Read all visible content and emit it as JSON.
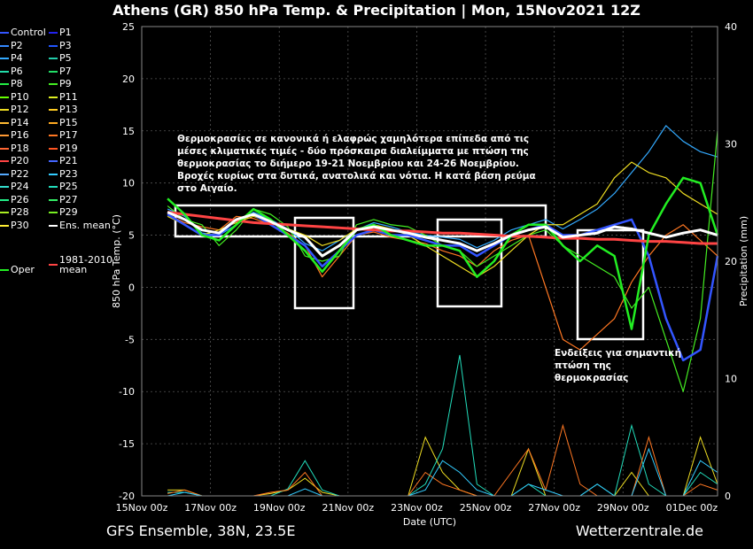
{
  "title": "Athens  (GR)  850 hPa Temp. & Precipitation | Mon, 15Nov2021 12Z",
  "footer_left": "GFS Ensemble, 38N, 23.5E",
  "footer_right": "Wetterzentrale.de",
  "annotation_main": "Θερμοκρασίες σε κανονικά ή ελαφρώς χαμηλότερα επίπεδα από τις μέσες κλιματικές τιμές - δύο πρόσκαιρα διαλείμματα με πτώση της θερμοκρασίας το διήμερο 19-21 Νοεμβρίου και 24-26 Νοεμβρίου. Βροχές κυρίως στα δυτικά, ανατολικά και νότια. Η κατά βάση ρεύμα στο Αιγαίο.",
  "annotation_drop": "Ενδείξεις για σημαντική πτώση της θερμοκρασίας",
  "legend": [
    {
      "label": "Control",
      "color": "#3355ff"
    },
    {
      "label": "P1",
      "color": "#2222ee"
    },
    {
      "label": "P2",
      "color": "#3388ff"
    },
    {
      "label": "P3",
      "color": "#2255ff"
    },
    {
      "label": "P4",
      "color": "#33aaff"
    },
    {
      "label": "P5",
      "color": "#22ccaa"
    },
    {
      "label": "P6",
      "color": "#22ddaa"
    },
    {
      "label": "P7",
      "color": "#22dd66"
    },
    {
      "label": "P8",
      "color": "#22ee44"
    },
    {
      "label": "P9",
      "color": "#44ee22"
    },
    {
      "label": "P10",
      "color": "#66ff00"
    },
    {
      "label": "P11",
      "color": "#ddee22"
    },
    {
      "label": "P12",
      "color": "#eedd22"
    },
    {
      "label": "P13",
      "color": "#ffcc22"
    },
    {
      "label": "P14",
      "color": "#ffbb33"
    },
    {
      "label": "P15",
      "color": "#ffaa22"
    },
    {
      "label": "P16",
      "color": "#ff9933"
    },
    {
      "label": "P17",
      "color": "#ff7722"
    },
    {
      "label": "P18",
      "color": "#ff6633"
    },
    {
      "label": "P19",
      "color": "#ff5522"
    },
    {
      "label": "P20",
      "color": "#ff4444"
    },
    {
      "label": "P21",
      "color": "#4466ff"
    },
    {
      "label": "P22",
      "color": "#55aaff"
    },
    {
      "label": "P23",
      "color": "#33ccff"
    },
    {
      "label": "P24",
      "color": "#33ddcc"
    },
    {
      "label": "P25",
      "color": "#22ddbb"
    },
    {
      "label": "P26",
      "color": "#22ee88"
    },
    {
      "label": "P27",
      "color": "#33ee66"
    },
    {
      "label": "P28",
      "color": "#aaee22"
    },
    {
      "label": "P29",
      "color": "#77ee22"
    },
    {
      "label": "P30",
      "color": "#ffee33"
    },
    {
      "label": "Ens. mean",
      "color": "#ffffff"
    },
    {
      "label": "Oper",
      "color": "#22ee22"
    },
    {
      "label": "1981-2010 mean",
      "color": "#ff4444"
    }
  ],
  "chart_data": {
    "type": "line",
    "x_tick_labels": [
      "15Nov 00z",
      "17Nov 00z",
      "19Nov 00z",
      "21Nov 00z",
      "23Nov 00z",
      "25Nov 00z",
      "27Nov 00z",
      "29Nov 00z",
      "01Dec 00z"
    ],
    "x_range_days": [
      15,
      31.75
    ],
    "ylabel_left": "850 hPa Temp. (°C)",
    "ylabel_right": "Precipitation (mm)",
    "xlabel": "Date (UTC)",
    "ylim_left": [
      -20,
      25
    ],
    "ylim_right": [
      0,
      40
    ],
    "y_ticks_left": [
      25,
      20,
      15,
      10,
      5,
      0,
      -5,
      -10,
      -15,
      -20
    ],
    "y_ticks_right": [
      40,
      30,
      20,
      10,
      0
    ],
    "grid": true,
    "x": [
      15.75,
      16.25,
      16.75,
      17.25,
      17.75,
      18.25,
      18.75,
      19.25,
      19.75,
      20.25,
      20.75,
      21.25,
      21.75,
      22.25,
      22.75,
      23.25,
      23.75,
      24.25,
      24.75,
      25.25,
      25.75,
      26.25,
      26.75,
      27.25,
      27.75,
      28.25,
      28.75,
      29.25,
      29.75,
      30.25,
      30.75,
      31.25,
      31.75
    ],
    "series": [
      {
        "name": "Ens. mean",
        "values": [
          7.2,
          6.5,
          5.5,
          5.2,
          6.5,
          7.0,
          6.3,
          5.5,
          4.8,
          3.0,
          4.0,
          5.5,
          5.8,
          5.5,
          5.2,
          4.8,
          4.5,
          4.2,
          3.5,
          4.2,
          5.0,
          5.5,
          5.8,
          4.8,
          5.0,
          5.2,
          5.8,
          5.6,
          5.2,
          4.8,
          5.2,
          5.5,
          5.0
        ]
      },
      {
        "name": "1981-2010 mean",
        "values": [
          7.2,
          7.0,
          6.8,
          6.6,
          6.4,
          6.2,
          6.1,
          6.0,
          5.9,
          5.8,
          5.7,
          5.6,
          5.5,
          5.4,
          5.4,
          5.3,
          5.2,
          5.2,
          5.1,
          5.0,
          4.9,
          4.9,
          4.8,
          4.7,
          4.7,
          4.6,
          4.6,
          4.5,
          4.4,
          4.4,
          4.3,
          4.2,
          4.2
        ]
      },
      {
        "name": "Oper",
        "values": [
          8.5,
          7.0,
          5.0,
          4.5,
          6.0,
          7.5,
          6.5,
          5.0,
          3.5,
          1.5,
          3.5,
          5.5,
          6.0,
          5.0,
          4.5,
          4.0,
          4.0,
          3.5,
          1.0,
          2.5,
          5.0,
          6.0,
          6.0,
          4.0,
          2.5,
          4.0,
          3.0,
          -4.0,
          5.0,
          8.0,
          10.5,
          10.0,
          5.0
        ]
      },
      {
        "name": "Control",
        "values": [
          7.0,
          6.0,
          5.0,
          5.0,
          6.5,
          7.0,
          6.0,
          5.0,
          4.0,
          2.0,
          3.5,
          5.0,
          5.5,
          5.0,
          5.0,
          4.5,
          4.0,
          4.0,
          3.0,
          4.0,
          5.0,
          5.5,
          6.0,
          5.0,
          5.0,
          5.5,
          6.0,
          6.5,
          3.0,
          -3.0,
          -7.0,
          -6.0,
          3.0
        ]
      },
      {
        "name": "P4",
        "values": [
          7.5,
          6.8,
          5.2,
          5.0,
          6.0,
          7.2,
          6.5,
          5.6,
          4.2,
          3.5,
          4.5,
          5.5,
          6.2,
          5.8,
          5.3,
          5.0,
          4.8,
          4.6,
          3.8,
          4.5,
          5.5,
          6.0,
          6.5,
          5.6,
          6.5,
          7.5,
          9.0,
          11.0,
          13.0,
          15.5,
          14.0,
          13.0,
          12.5
        ]
      },
      {
        "name": "P17",
        "values": [
          7.0,
          6.2,
          5.8,
          5.5,
          6.8,
          6.6,
          6.0,
          5.2,
          4.0,
          1.0,
          3.0,
          5.0,
          5.3,
          4.8,
          4.5,
          4.2,
          3.5,
          3.0,
          2.0,
          3.5,
          4.5,
          5.0,
          0.0,
          -5.0,
          -6.0,
          -4.5,
          -3.0,
          0.5,
          3.0,
          5.0,
          6.0,
          4.5,
          3.0
        ]
      },
      {
        "name": "P9",
        "values": [
          7.8,
          6.5,
          6.0,
          4.0,
          5.5,
          7.5,
          7.0,
          5.8,
          3.0,
          2.5,
          3.0,
          6.0,
          6.5,
          6.0,
          5.8,
          5.0,
          4.0,
          3.5,
          2.0,
          3.0,
          4.0,
          5.0,
          5.5,
          4.0,
          3.0,
          2.0,
          1.0,
          -2.0,
          0.0,
          -5.0,
          -10.0,
          -3.0,
          15.0
        ]
      },
      {
        "name": "P12",
        "values": [
          6.8,
          6.0,
          5.0,
          5.5,
          6.2,
          6.8,
          6.2,
          5.6,
          5.0,
          4.0,
          4.5,
          5.6,
          6.0,
          5.6,
          5.0,
          4.0,
          3.0,
          2.0,
          1.0,
          2.0,
          3.5,
          5.0,
          6.0,
          6.0,
          7.0,
          8.0,
          10.5,
          12.0,
          11.0,
          10.5,
          9.0,
          8.0,
          7.0
        ]
      }
    ],
    "precipitation": [
      {
        "name": "P12",
        "values": [
          0.5,
          0.5,
          0,
          0,
          0,
          0,
          0.2,
          0.5,
          1.5,
          0.3,
          0,
          0,
          0,
          0,
          0,
          5,
          2,
          0.5,
          0,
          0,
          0,
          4,
          0,
          0,
          0,
          0,
          0,
          2,
          0,
          0,
          0,
          5,
          1
        ]
      },
      {
        "name": "P25",
        "values": [
          0.3,
          0.3,
          0,
          0,
          0,
          0,
          0,
          0.6,
          3,
          0.5,
          0,
          0,
          0,
          0,
          0,
          1,
          4,
          12,
          1,
          0,
          0,
          1,
          0,
          0,
          0,
          1,
          0,
          6,
          1,
          0,
          0,
          2,
          1
        ]
      },
      {
        "name": "P17",
        "values": [
          0.2,
          0.5,
          0,
          0,
          0,
          0,
          0.3,
          0.5,
          2,
          0,
          0,
          0,
          0,
          0,
          0,
          2,
          1,
          0.5,
          0,
          0,
          2,
          4,
          0.5,
          6,
          1,
          0,
          0,
          0,
          5,
          0,
          0,
          1,
          0.5
        ]
      },
      {
        "name": "P23",
        "values": [
          0,
          0.3,
          0,
          0,
          0,
          0,
          0,
          0,
          0.6,
          0,
          0,
          0,
          0,
          0,
          0,
          0.5,
          3,
          2,
          0.5,
          0,
          0,
          1,
          0.5,
          0,
          0,
          1,
          0,
          0,
          4,
          0,
          0,
          3,
          2
        ]
      }
    ]
  }
}
